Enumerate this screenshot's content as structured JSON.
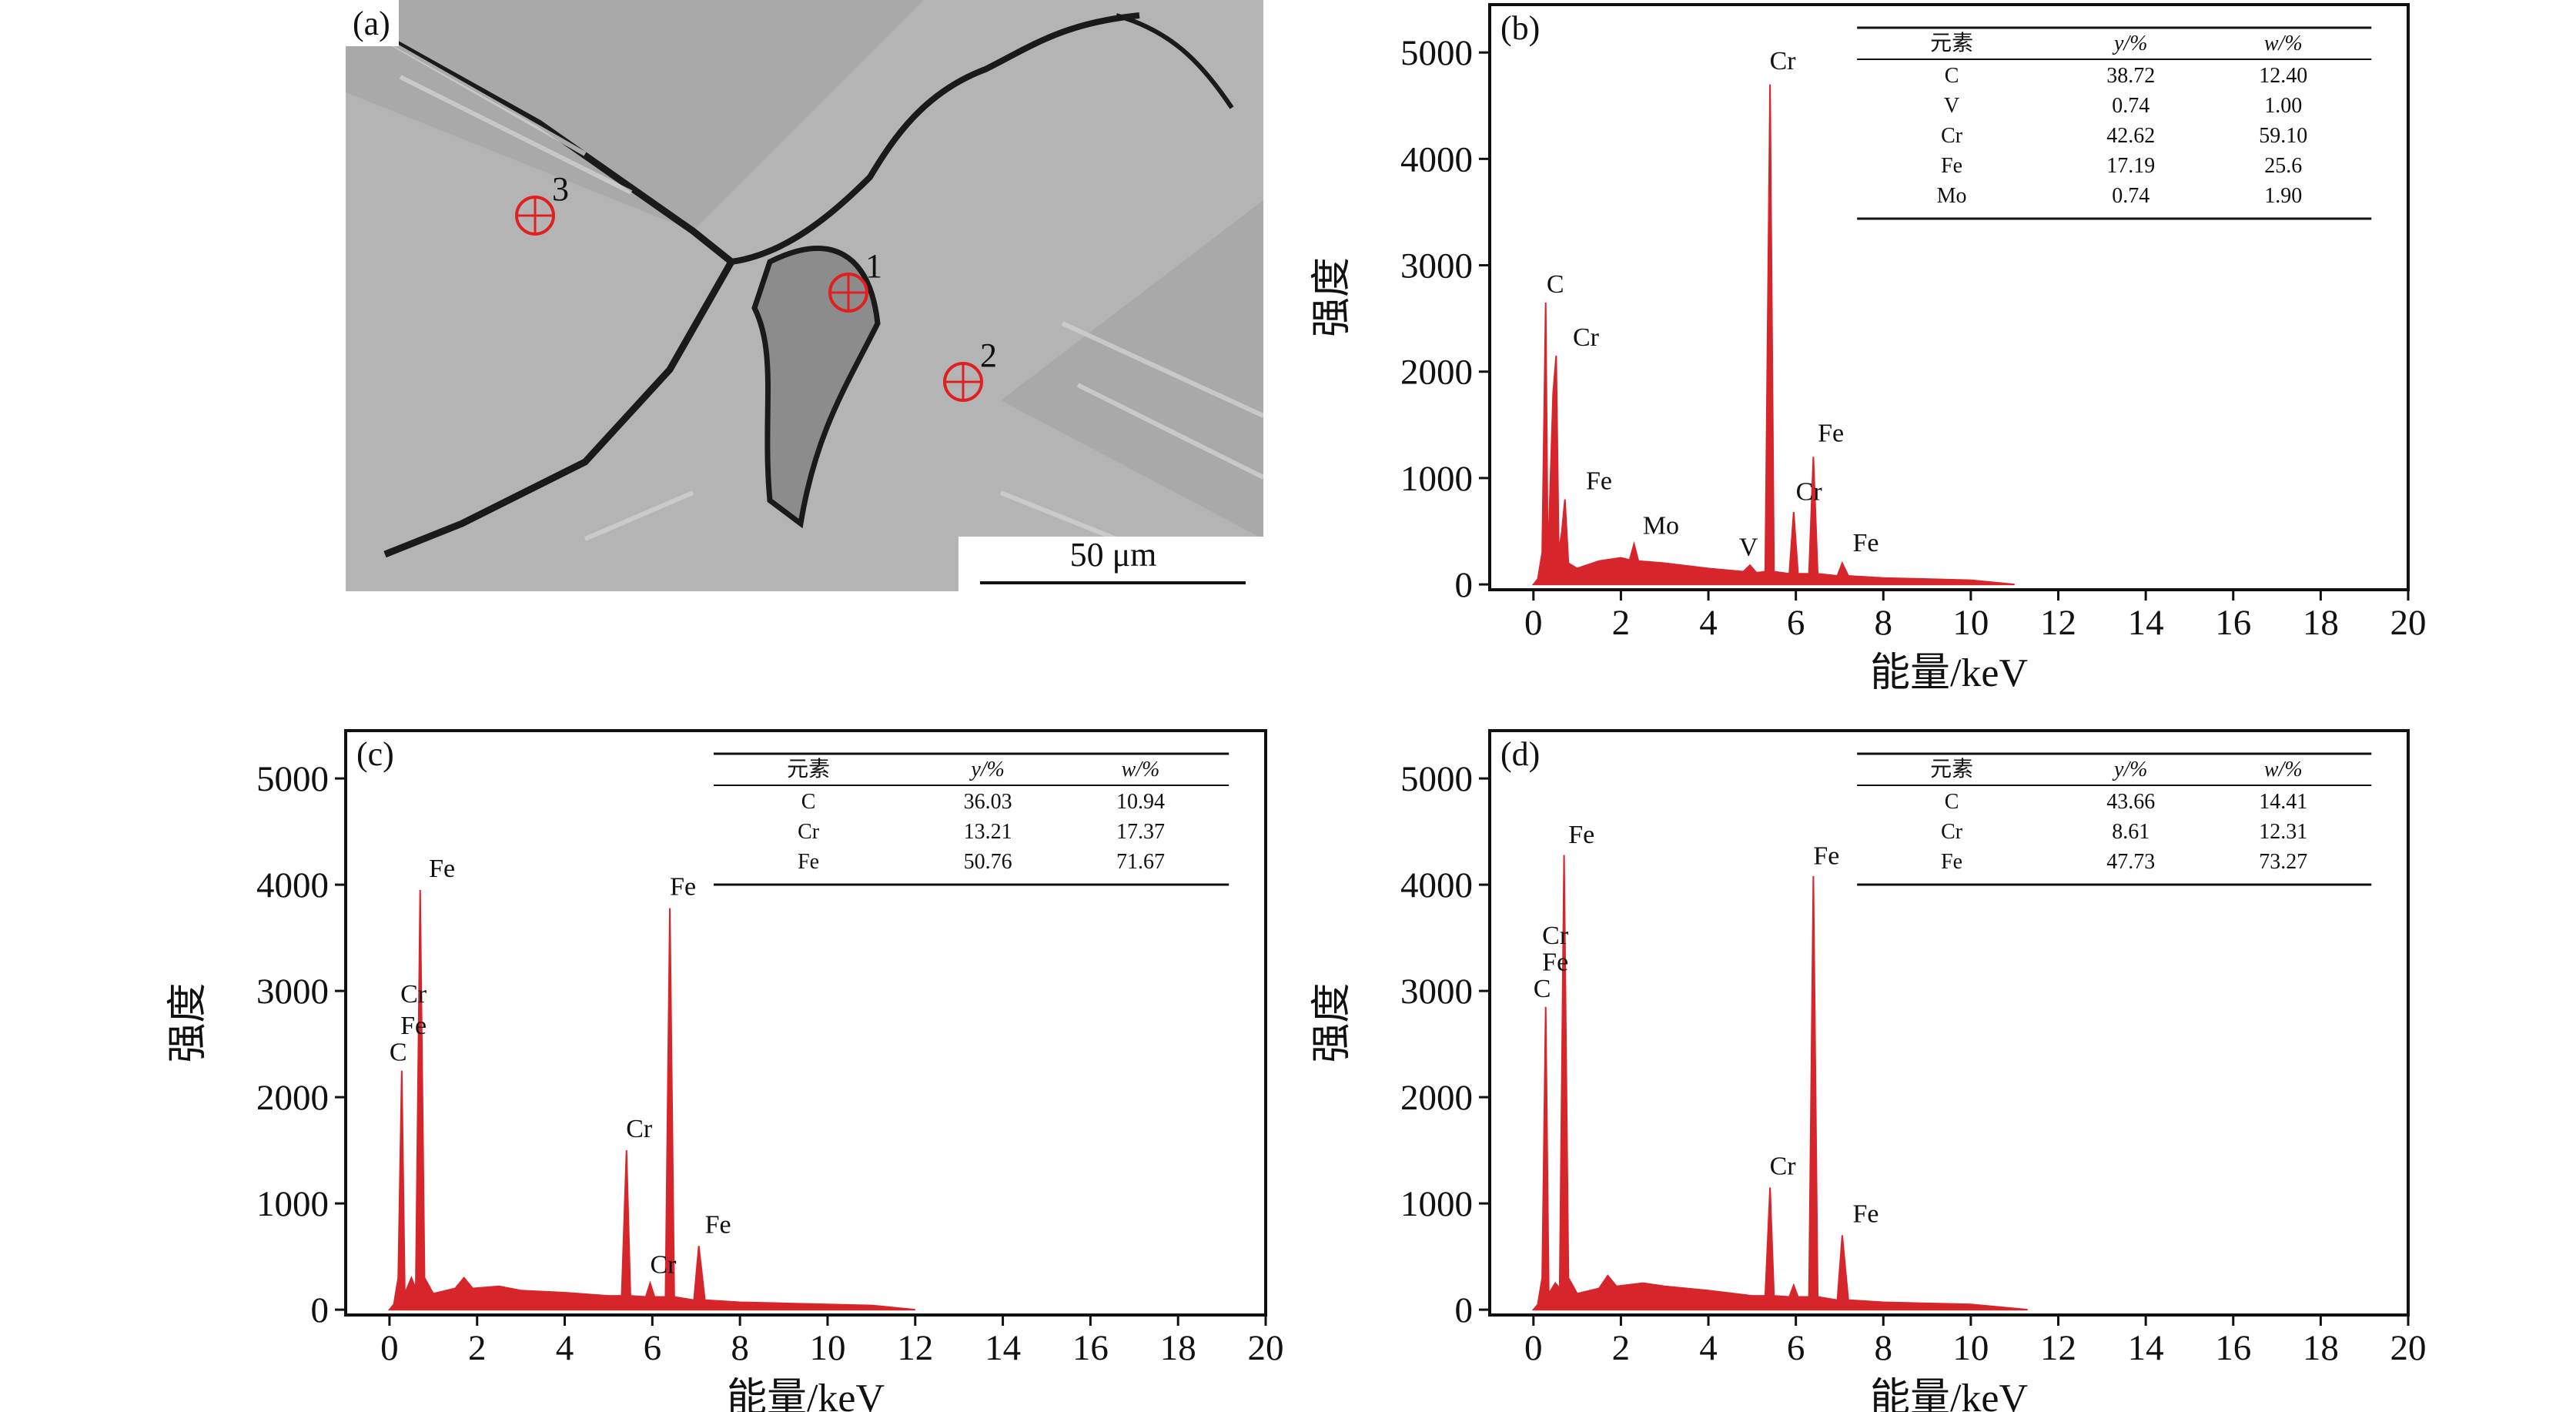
{
  "micrograph": {
    "label": "(a)",
    "points": [
      "1",
      "2",
      "3"
    ],
    "scale_bar": "50 μm"
  },
  "chart_data": [
    {
      "type": "area",
      "panel_label": "(b)",
      "xlabel": "能量/keV",
      "ylabel": "强度",
      "color": "#d7262b",
      "x": [
        0,
        0.1,
        0.2,
        0.28,
        0.33,
        0.45,
        0.52,
        0.58,
        0.65,
        0.72,
        0.8,
        1.0,
        1.5,
        2.0,
        2.2,
        2.3,
        2.4,
        3.0,
        4.0,
        4.8,
        4.95,
        5.1,
        5.3,
        5.41,
        5.5,
        5.85,
        5.95,
        6.05,
        6.3,
        6.4,
        6.5,
        6.95,
        7.06,
        7.2,
        8,
        9,
        10,
        11
      ],
      "values": [
        0,
        50,
        300,
        2650,
        200,
        1800,
        2150,
        300,
        500,
        800,
        200,
        150,
        220,
        250,
        230,
        380,
        220,
        200,
        150,
        120,
        180,
        110,
        120,
        4700,
        120,
        100,
        680,
        100,
        100,
        1200,
        100,
        80,
        200,
        80,
        60,
        50,
        40,
        0
      ],
      "xlim": [
        -1,
        20
      ],
      "ylim": [
        -50,
        5450
      ],
      "xticks": [
        0,
        2,
        4,
        6,
        8,
        10,
        12,
        14,
        16,
        18,
        20
      ],
      "yticks": [
        0,
        1000,
        2000,
        3000,
        4000,
        5000
      ],
      "grid": false,
      "annotations": [
        {
          "text": "C",
          "x": 0.3,
          "y": 2700
        },
        {
          "text": "Cr",
          "x": 0.9,
          "y": 2200
        },
        {
          "text": "Fe",
          "x": 1.2,
          "y": 850
        },
        {
          "text": "Mo",
          "x": 2.5,
          "y": 430
        },
        {
          "text": "V",
          "x": 4.7,
          "y": 230
        },
        {
          "text": "Cr",
          "x": 5.4,
          "y": 4800
        },
        {
          "text": "Cr",
          "x": 6.0,
          "y": 750
        },
        {
          "text": "Fe",
          "x": 6.5,
          "y": 1300
        },
        {
          "text": "Fe",
          "x": 7.3,
          "y": 270
        }
      ],
      "table": {
        "columns": [
          "元素",
          "y/%",
          "w/%"
        ],
        "rows": [
          [
            "C",
            "38.72",
            "12.40"
          ],
          [
            "V",
            "0.74",
            "1.00"
          ],
          [
            "Cr",
            "42.62",
            "59.10"
          ],
          [
            "Fe",
            "17.19",
            "25.6"
          ],
          [
            "Mo",
            "0.74",
            "1.90"
          ]
        ]
      }
    },
    {
      "type": "area",
      "panel_label": "(c)",
      "xlabel": "能量/keV",
      "ylabel": "强度",
      "color": "#d7262b",
      "x": [
        0,
        0.1,
        0.2,
        0.28,
        0.35,
        0.5,
        0.6,
        0.7,
        0.8,
        1.0,
        1.5,
        1.7,
        1.9,
        2.5,
        3,
        4,
        5,
        5.3,
        5.41,
        5.5,
        5.85,
        5.95,
        6.05,
        6.3,
        6.4,
        6.5,
        6.95,
        7.06,
        7.2,
        8,
        9,
        10,
        11,
        12
      ],
      "values": [
        0,
        50,
        300,
        2250,
        150,
        300,
        200,
        3950,
        300,
        150,
        200,
        300,
        200,
        220,
        180,
        160,
        130,
        130,
        1500,
        130,
        120,
        250,
        120,
        120,
        3780,
        120,
        90,
        600,
        90,
        70,
        60,
        50,
        40,
        0
      ],
      "xlim": [
        -1,
        20
      ],
      "ylim": [
        -50,
        5450
      ],
      "xticks": [
        0,
        2,
        4,
        6,
        8,
        10,
        12,
        14,
        16,
        18,
        20
      ],
      "yticks": [
        0,
        1000,
        2000,
        3000,
        4000,
        5000
      ],
      "grid": false,
      "annotations": [
        {
          "text": "C",
          "x": 0.0,
          "y": 2300
        },
        {
          "text": "Fe",
          "x": 0.25,
          "y": 2550
        },
        {
          "text": "Cr",
          "x": 0.25,
          "y": 2850
        },
        {
          "text": "Fe",
          "x": 0.9,
          "y": 4030
        },
        {
          "text": "Cr",
          "x": 5.4,
          "y": 1580
        },
        {
          "text": "Cr",
          "x": 5.95,
          "y": 300
        },
        {
          "text": "Fe",
          "x": 6.4,
          "y": 3860
        },
        {
          "text": "Fe",
          "x": 7.2,
          "y": 680
        }
      ],
      "table": {
        "columns": [
          "元素",
          "y/%",
          "w/%"
        ],
        "rows": [
          [
            "C",
            "36.03",
            "10.94"
          ],
          [
            "Cr",
            "13.21",
            "17.37"
          ],
          [
            "Fe",
            "50.76",
            "71.67"
          ]
        ]
      }
    },
    {
      "type": "area",
      "panel_label": "(d)",
      "xlabel": "能量/keV",
      "ylabel": "强度",
      "color": "#d7262b",
      "x": [
        0,
        0.1,
        0.2,
        0.28,
        0.35,
        0.5,
        0.6,
        0.7,
        0.8,
        1.0,
        1.5,
        1.7,
        1.9,
        2.5,
        3,
        4,
        5,
        5.3,
        5.41,
        5.5,
        5.85,
        5.95,
        6.05,
        6.3,
        6.4,
        6.5,
        6.95,
        7.06,
        7.2,
        8,
        9,
        10,
        11.3
      ],
      "values": [
        0,
        50,
        300,
        2850,
        150,
        250,
        200,
        4280,
        300,
        150,
        200,
        320,
        220,
        250,
        220,
        180,
        130,
        130,
        1150,
        130,
        120,
        230,
        120,
        120,
        4080,
        120,
        90,
        700,
        90,
        70,
        60,
        50,
        0
      ],
      "xlim": [
        -1,
        20
      ],
      "ylim": [
        -50,
        5450
      ],
      "xticks": [
        0,
        2,
        4,
        6,
        8,
        10,
        12,
        14,
        16,
        18,
        20
      ],
      "yticks": [
        0,
        1000,
        2000,
        3000,
        4000,
        5000
      ],
      "grid": false,
      "annotations": [
        {
          "text": "C",
          "x": 0.0,
          "y": 2900
        },
        {
          "text": "Fe",
          "x": 0.2,
          "y": 3150
        },
        {
          "text": "Cr",
          "x": 0.2,
          "y": 3400
        },
        {
          "text": "Fe",
          "x": 0.8,
          "y": 4350
        },
        {
          "text": "Cr",
          "x": 5.4,
          "y": 1230
        },
        {
          "text": "Fe",
          "x": 6.4,
          "y": 4150
        },
        {
          "text": "Fe",
          "x": 7.3,
          "y": 780
        }
      ],
      "table": {
        "columns": [
          "元素",
          "y/%",
          "w/%"
        ],
        "rows": [
          [
            "C",
            "43.66",
            "14.41"
          ],
          [
            "Cr",
            "8.61",
            "12.31"
          ],
          [
            "Fe",
            "47.73",
            "73.27"
          ]
        ]
      }
    }
  ]
}
